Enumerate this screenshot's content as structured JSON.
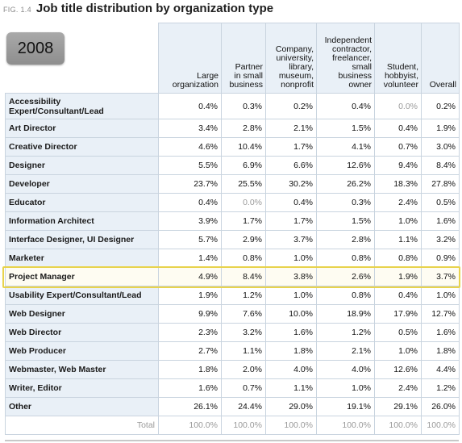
{
  "figure": {
    "label": "FIG. 1.4",
    "title": "Job title distribution by organization type",
    "year": "2008"
  },
  "chart_data": {
    "type": "table",
    "title": "Job title distribution by organization type",
    "columns": [
      "Large organization",
      "Partner in small business",
      "Company, university, library, museum, nonprofit",
      "Independent contractor, freelancer, small business owner",
      "Student, hobbyist, volunteer",
      "Overall"
    ],
    "column_lines": [
      [
        "Large",
        "organization"
      ],
      [
        "Partner",
        "in small",
        "business"
      ],
      [
        "Company,",
        "university,",
        "library,",
        "museum,",
        "nonprofit"
      ],
      [
        "Independent",
        "contractor,",
        "freelancer,",
        "small",
        "business",
        "owner"
      ],
      [
        "Student,",
        "hobbyist,",
        "volunteer"
      ],
      [
        "Overall"
      ]
    ],
    "rows": [
      {
        "name": "Accessibility Expert/Consultant/Lead",
        "name_lines": [
          "Accessibility",
          "Expert/Consultant/Lead"
        ],
        "values": [
          "0.4%",
          "0.3%",
          "0.2%",
          "0.4%",
          "0.0%",
          "0.2%"
        ]
      },
      {
        "name": "Art Director",
        "values": [
          "3.4%",
          "2.8%",
          "2.1%",
          "1.5%",
          "0.4%",
          "1.9%"
        ]
      },
      {
        "name": "Creative Director",
        "values": [
          "4.6%",
          "10.4%",
          "1.7%",
          "4.1%",
          "0.7%",
          "3.0%"
        ]
      },
      {
        "name": "Designer",
        "values": [
          "5.5%",
          "6.9%",
          "6.6%",
          "12.6%",
          "9.4%",
          "8.4%"
        ]
      },
      {
        "name": "Developer",
        "values": [
          "23.7%",
          "25.5%",
          "30.2%",
          "26.2%",
          "18.3%",
          "27.8%"
        ]
      },
      {
        "name": "Educator",
        "values": [
          "0.4%",
          "0.0%",
          "0.4%",
          "0.3%",
          "2.4%",
          "0.5%"
        ]
      },
      {
        "name": "Information Architect",
        "values": [
          "3.9%",
          "1.7%",
          "1.7%",
          "1.5%",
          "1.0%",
          "1.6%"
        ]
      },
      {
        "name": "Interface Designer, UI Designer",
        "values": [
          "5.7%",
          "2.9%",
          "3.7%",
          "2.8%",
          "1.1%",
          "3.2%"
        ]
      },
      {
        "name": "Marketer",
        "values": [
          "1.4%",
          "0.8%",
          "1.0%",
          "0.8%",
          "0.8%",
          "0.9%"
        ]
      },
      {
        "name": "Project Manager",
        "values": [
          "4.9%",
          "8.4%",
          "3.8%",
          "2.6%",
          "1.9%",
          "3.7%"
        ],
        "highlighted": true
      },
      {
        "name": "Usability Expert/Consultant/Lead",
        "values": [
          "1.9%",
          "1.2%",
          "1.0%",
          "0.8%",
          "0.4%",
          "1.0%"
        ]
      },
      {
        "name": "Web Designer",
        "values": [
          "9.9%",
          "7.6%",
          "10.0%",
          "18.9%",
          "17.9%",
          "12.7%"
        ]
      },
      {
        "name": "Web Director",
        "values": [
          "2.3%",
          "3.2%",
          "1.6%",
          "1.2%",
          "0.5%",
          "1.6%"
        ]
      },
      {
        "name": "Web Producer",
        "values": [
          "2.7%",
          "1.1%",
          "1.8%",
          "2.1%",
          "1.0%",
          "1.8%"
        ]
      },
      {
        "name": "Webmaster, Web Master",
        "values": [
          "1.8%",
          "2.0%",
          "4.0%",
          "4.0%",
          "12.6%",
          "4.4%"
        ]
      },
      {
        "name": "Writer, Editor",
        "values": [
          "1.6%",
          "0.7%",
          "1.1%",
          "1.0%",
          "2.4%",
          "1.2%"
        ]
      },
      {
        "name": "Other",
        "values": [
          "26.1%",
          "24.4%",
          "29.0%",
          "19.1%",
          "29.1%",
          "26.0%"
        ]
      }
    ],
    "total": {
      "label": "Total",
      "values": [
        "100.0%",
        "100.0%",
        "100.0%",
        "100.0%",
        "100.0%",
        "100.0%"
      ]
    },
    "colors": {
      "header_bg": "#e9f0f7",
      "highlight_border": "#e8d34c",
      "muted_text": "#9a9a9a"
    }
  }
}
